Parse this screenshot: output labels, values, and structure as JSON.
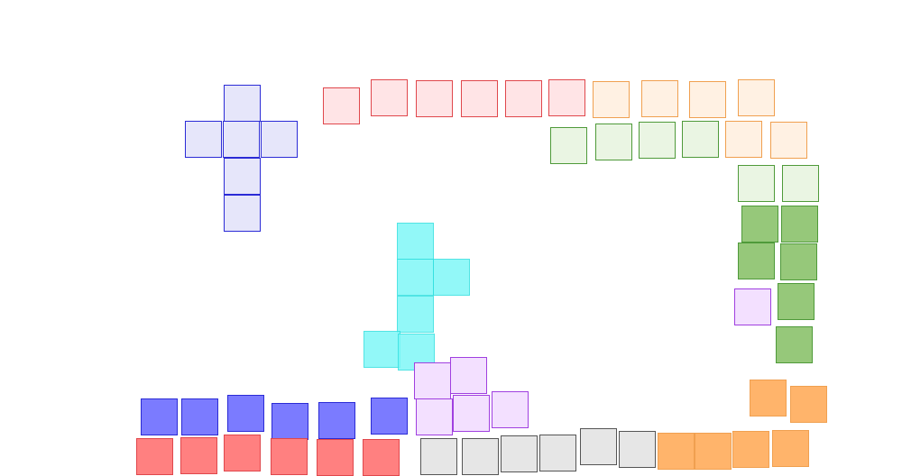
{
  "palette": {
    "blue": {
      "fill": "#e6e6fa",
      "stroke": "#2b2bd6"
    },
    "blue-solid": {
      "fill": "#7b7bff",
      "stroke": "#2b2bd6"
    },
    "red": {
      "fill": "#ffe4e6",
      "stroke": "#e0474c"
    },
    "red-solid": {
      "fill": "#ff8080",
      "stroke": "#e0474c"
    },
    "orange": {
      "fill": "#fff1e3",
      "stroke": "#f0a050"
    },
    "orange-solid": {
      "fill": "#ffb46b",
      "stroke": "#f0a050"
    },
    "green": {
      "fill": "#eaf5e3",
      "stroke": "#4f9a3a"
    },
    "green-solid": {
      "fill": "#96c87a",
      "stroke": "#4f9a3a"
    },
    "cyan-solid": {
      "fill": "#7ff7f7",
      "stroke": "#33e0e0"
    },
    "violet": {
      "fill": "#f3e0ff",
      "stroke": "#a040e0"
    },
    "gray": {
      "fill": "#e6e6e6",
      "stroke": "#555555"
    }
  },
  "pieces": [
    {
      "name": "blue-plus-piece",
      "color": "blue"
    },
    {
      "name": "red-row-piece",
      "color": "red"
    },
    {
      "name": "orange-top-piece",
      "color": "orange"
    },
    {
      "name": "green-light-piece",
      "color": "green"
    },
    {
      "name": "green-solid-piece",
      "color": "green-solid"
    },
    {
      "name": "violet-single-piece",
      "color": "violet"
    },
    {
      "name": "cyan-piece",
      "color": "cyan-solid"
    },
    {
      "name": "violet-piece",
      "color": "violet"
    },
    {
      "name": "blue-solid-row-piece",
      "color": "blue-solid"
    },
    {
      "name": "red-solid-row-piece",
      "color": "red-solid"
    },
    {
      "name": "gray-row-piece",
      "color": "gray"
    },
    {
      "name": "orange-solid-piece",
      "color": "orange-solid"
    }
  ]
}
